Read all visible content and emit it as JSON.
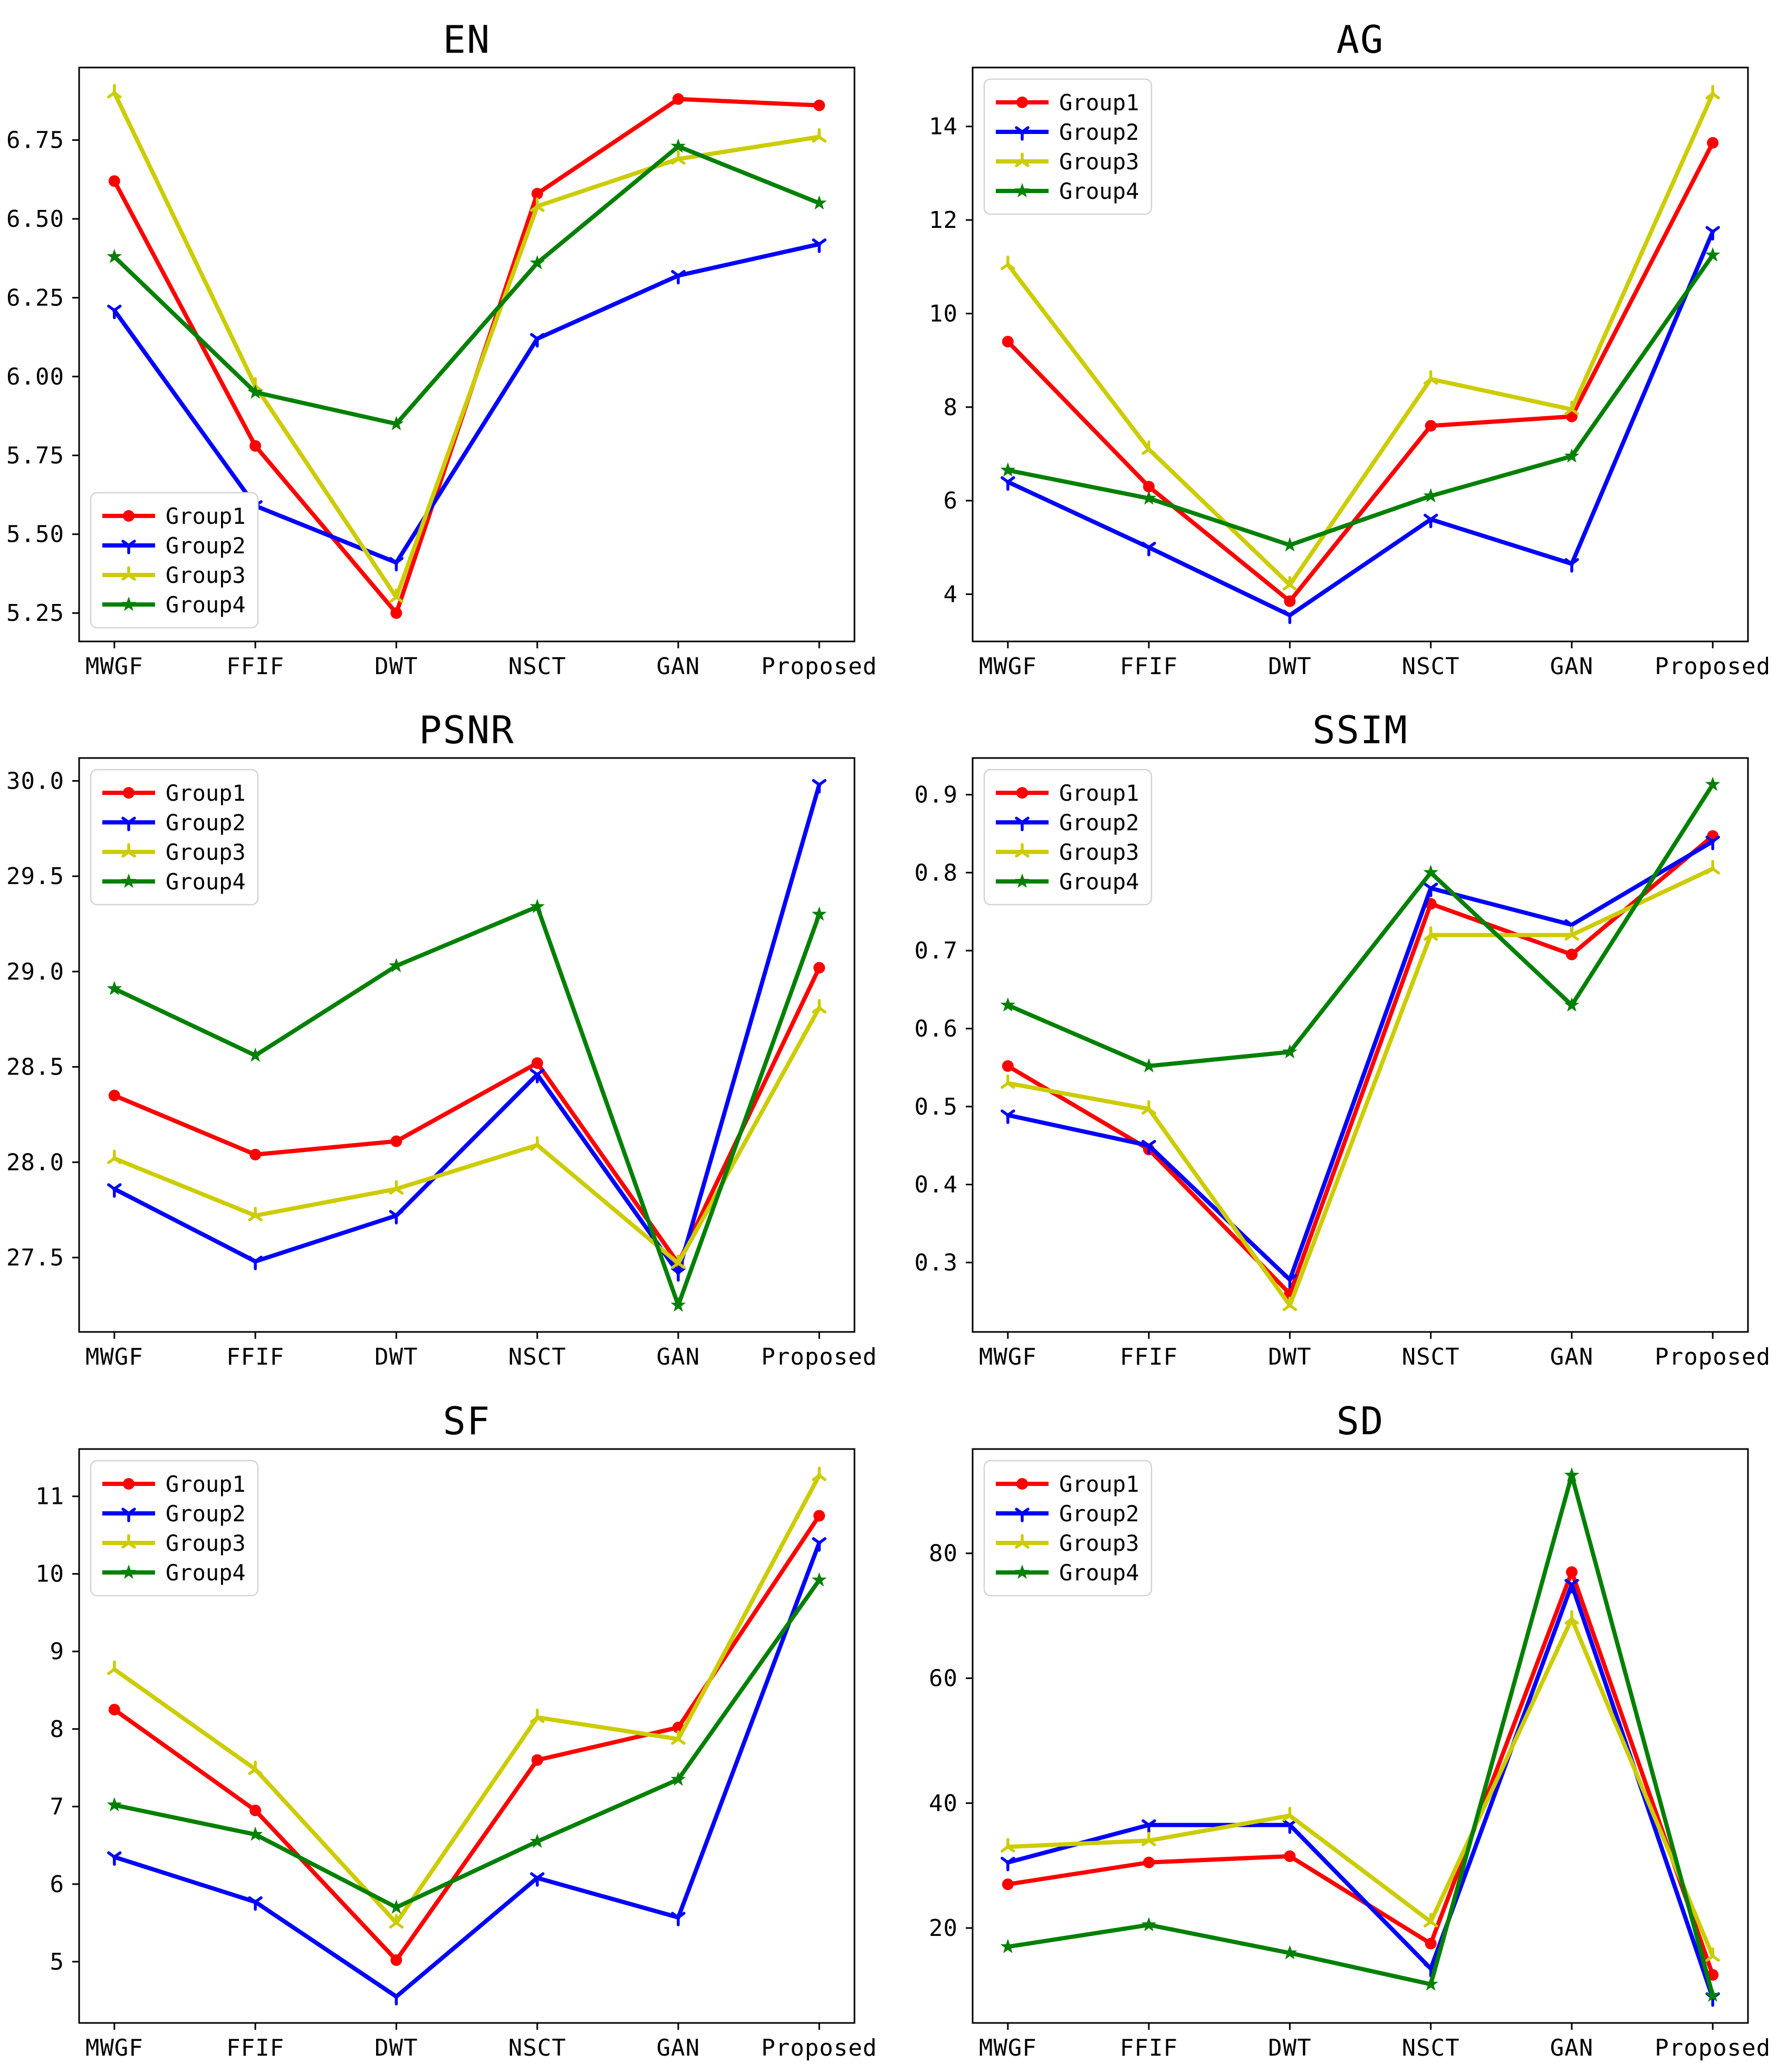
{
  "page": {
    "background": "#ffffff",
    "layout": "2x3-grid-of-line-charts"
  },
  "categories": [
    "MWGF",
    "FFIF",
    "DWT",
    "NSCT",
    "GAN",
    "Proposed"
  ],
  "groups": [
    {
      "name": "Group1",
      "color": "#ff0000",
      "marker": "circle"
    },
    {
      "name": "Group2",
      "color": "#0000ff",
      "marker": "tri-down"
    },
    {
      "name": "Group3",
      "color": "#cccc00",
      "marker": "tri-up"
    },
    {
      "name": "Group4",
      "color": "#008000",
      "marker": "star"
    }
  ],
  "chart_data": [
    {
      "type": "line",
      "title": "EN",
      "xlabel": "",
      "ylabel": "",
      "legend_position": "lower-left",
      "grid": false,
      "ylim": [
        5.16,
        6.98
      ],
      "yticks": [
        5.25,
        5.5,
        5.75,
        6.0,
        6.25,
        6.5,
        6.75
      ],
      "ytick_labels": [
        "5.25",
        "5.50",
        "5.75",
        "6.00",
        "6.25",
        "6.50",
        "6.75"
      ],
      "categories": [
        "MWGF",
        "FFIF",
        "DWT",
        "NSCT",
        "GAN",
        "Proposed"
      ],
      "series": [
        {
          "name": "Group1",
          "values": [
            6.62,
            5.78,
            5.25,
            6.58,
            6.88,
            6.86
          ]
        },
        {
          "name": "Group2",
          "values": [
            6.21,
            5.59,
            5.41,
            6.12,
            6.32,
            6.42
          ]
        },
        {
          "name": "Group3",
          "values": [
            6.9,
            5.97,
            5.3,
            6.54,
            6.69,
            6.76
          ]
        },
        {
          "name": "Group4",
          "values": [
            6.38,
            5.95,
            5.85,
            6.36,
            6.73,
            6.55
          ]
        }
      ]
    },
    {
      "type": "line",
      "title": "AG",
      "xlabel": "",
      "ylabel": "",
      "legend_position": "upper-left",
      "grid": false,
      "ylim": [
        2.99,
        15.26
      ],
      "yticks": [
        4,
        6,
        8,
        10,
        12,
        14
      ],
      "ytick_labels": [
        "4",
        "6",
        "8",
        "10",
        "12",
        "14"
      ],
      "categories": [
        "MWGF",
        "FFIF",
        "DWT",
        "NSCT",
        "GAN",
        "Proposed"
      ],
      "series": [
        {
          "name": "Group1",
          "values": [
            9.4,
            6.3,
            3.85,
            7.6,
            7.8,
            13.65
          ]
        },
        {
          "name": "Group2",
          "values": [
            6.4,
            5.0,
            3.55,
            5.6,
            4.65,
            11.75
          ]
        },
        {
          "name": "Group3",
          "values": [
            11.05,
            7.1,
            4.2,
            8.6,
            7.95,
            14.7
          ]
        },
        {
          "name": "Group4",
          "values": [
            6.65,
            6.05,
            5.05,
            6.1,
            6.95,
            11.25
          ]
        }
      ]
    },
    {
      "type": "line",
      "title": "PSNR",
      "xlabel": "",
      "ylabel": "",
      "legend_position": "upper-left",
      "grid": false,
      "ylim": [
        27.11,
        30.12
      ],
      "yticks": [
        27.5,
        28.0,
        28.5,
        29.0,
        29.5,
        30.0
      ],
      "ytick_labels": [
        "27.5",
        "28.0",
        "28.5",
        "29.0",
        "29.5",
        "30.0"
      ],
      "categories": [
        "MWGF",
        "FFIF",
        "DWT",
        "NSCT",
        "GAN",
        "Proposed"
      ],
      "series": [
        {
          "name": "Group1",
          "values": [
            28.35,
            28.04,
            28.11,
            28.52,
            27.47,
            29.02
          ]
        },
        {
          "name": "Group2",
          "values": [
            27.86,
            27.48,
            27.72,
            28.46,
            27.42,
            29.98
          ]
        },
        {
          "name": "Group3",
          "values": [
            28.02,
            27.72,
            27.86,
            28.09,
            27.47,
            28.81
          ]
        },
        {
          "name": "Group4",
          "values": [
            28.91,
            28.56,
            29.03,
            29.34,
            27.25,
            29.3
          ]
        }
      ]
    },
    {
      "type": "line",
      "title": "SSIM",
      "xlabel": "",
      "ylabel": "",
      "legend_position": "upper-left",
      "grid": false,
      "ylim": [
        0.211,
        0.947
      ],
      "yticks": [
        0.3,
        0.4,
        0.5,
        0.6,
        0.7,
        0.8,
        0.9
      ],
      "ytick_labels": [
        "0.3",
        "0.4",
        "0.5",
        "0.6",
        "0.7",
        "0.8",
        "0.9"
      ],
      "categories": [
        "MWGF",
        "FFIF",
        "DWT",
        "NSCT",
        "GAN",
        "Proposed"
      ],
      "series": [
        {
          "name": "Group1",
          "values": [
            0.552,
            0.445,
            0.26,
            0.76,
            0.695,
            0.847
          ]
        },
        {
          "name": "Group2",
          "values": [
            0.489,
            0.45,
            0.278,
            0.78,
            0.733,
            0.84
          ]
        },
        {
          "name": "Group3",
          "values": [
            0.53,
            0.497,
            0.245,
            0.72,
            0.72,
            0.805
          ]
        },
        {
          "name": "Group4",
          "values": [
            0.63,
            0.552,
            0.57,
            0.8,
            0.63,
            0.913
          ]
        }
      ]
    },
    {
      "type": "line",
      "title": "SF",
      "xlabel": "",
      "ylabel": "",
      "legend_position": "upper-left",
      "grid": false,
      "ylim": [
        4.21,
        11.61
      ],
      "yticks": [
        5,
        6,
        7,
        8,
        9,
        10,
        11
      ],
      "ytick_labels": [
        "5",
        "6",
        "7",
        "8",
        "9",
        "10",
        "11"
      ],
      "categories": [
        "MWGF",
        "FFIF",
        "DWT",
        "NSCT",
        "GAN",
        "Proposed"
      ],
      "series": [
        {
          "name": "Group1",
          "values": [
            8.25,
            6.95,
            5.02,
            7.6,
            8.02,
            10.75
          ]
        },
        {
          "name": "Group2",
          "values": [
            6.35,
            5.77,
            4.55,
            6.08,
            5.57,
            10.4
          ]
        },
        {
          "name": "Group3",
          "values": [
            8.77,
            7.48,
            5.5,
            8.15,
            7.87,
            11.27
          ]
        },
        {
          "name": "Group4",
          "values": [
            7.02,
            6.64,
            5.7,
            6.55,
            7.35,
            9.92
          ]
        }
      ]
    },
    {
      "type": "line",
      "title": "SD",
      "xlabel": "",
      "ylabel": "",
      "legend_position": "upper-left",
      "grid": false,
      "ylim": [
        4.8,
        96.7
      ],
      "yticks": [
        20,
        40,
        60,
        80
      ],
      "ytick_labels": [
        "20",
        "40",
        "60",
        "80"
      ],
      "categories": [
        "MWGF",
        "FFIF",
        "DWT",
        "NSCT",
        "GAN",
        "Proposed"
      ],
      "series": [
        {
          "name": "Group1",
          "values": [
            27.0,
            30.5,
            31.5,
            17.5,
            77.0,
            12.5
          ]
        },
        {
          "name": "Group2",
          "values": [
            30.5,
            36.5,
            36.5,
            13.5,
            75.0,
            8.8
          ]
        },
        {
          "name": "Group3",
          "values": [
            33.0,
            34.0,
            38.0,
            21.0,
            69.5,
            15.5
          ]
        },
        {
          "name": "Group4",
          "values": [
            17.0,
            20.5,
            16.0,
            11.0,
            92.5,
            9.2
          ]
        }
      ]
    }
  ]
}
